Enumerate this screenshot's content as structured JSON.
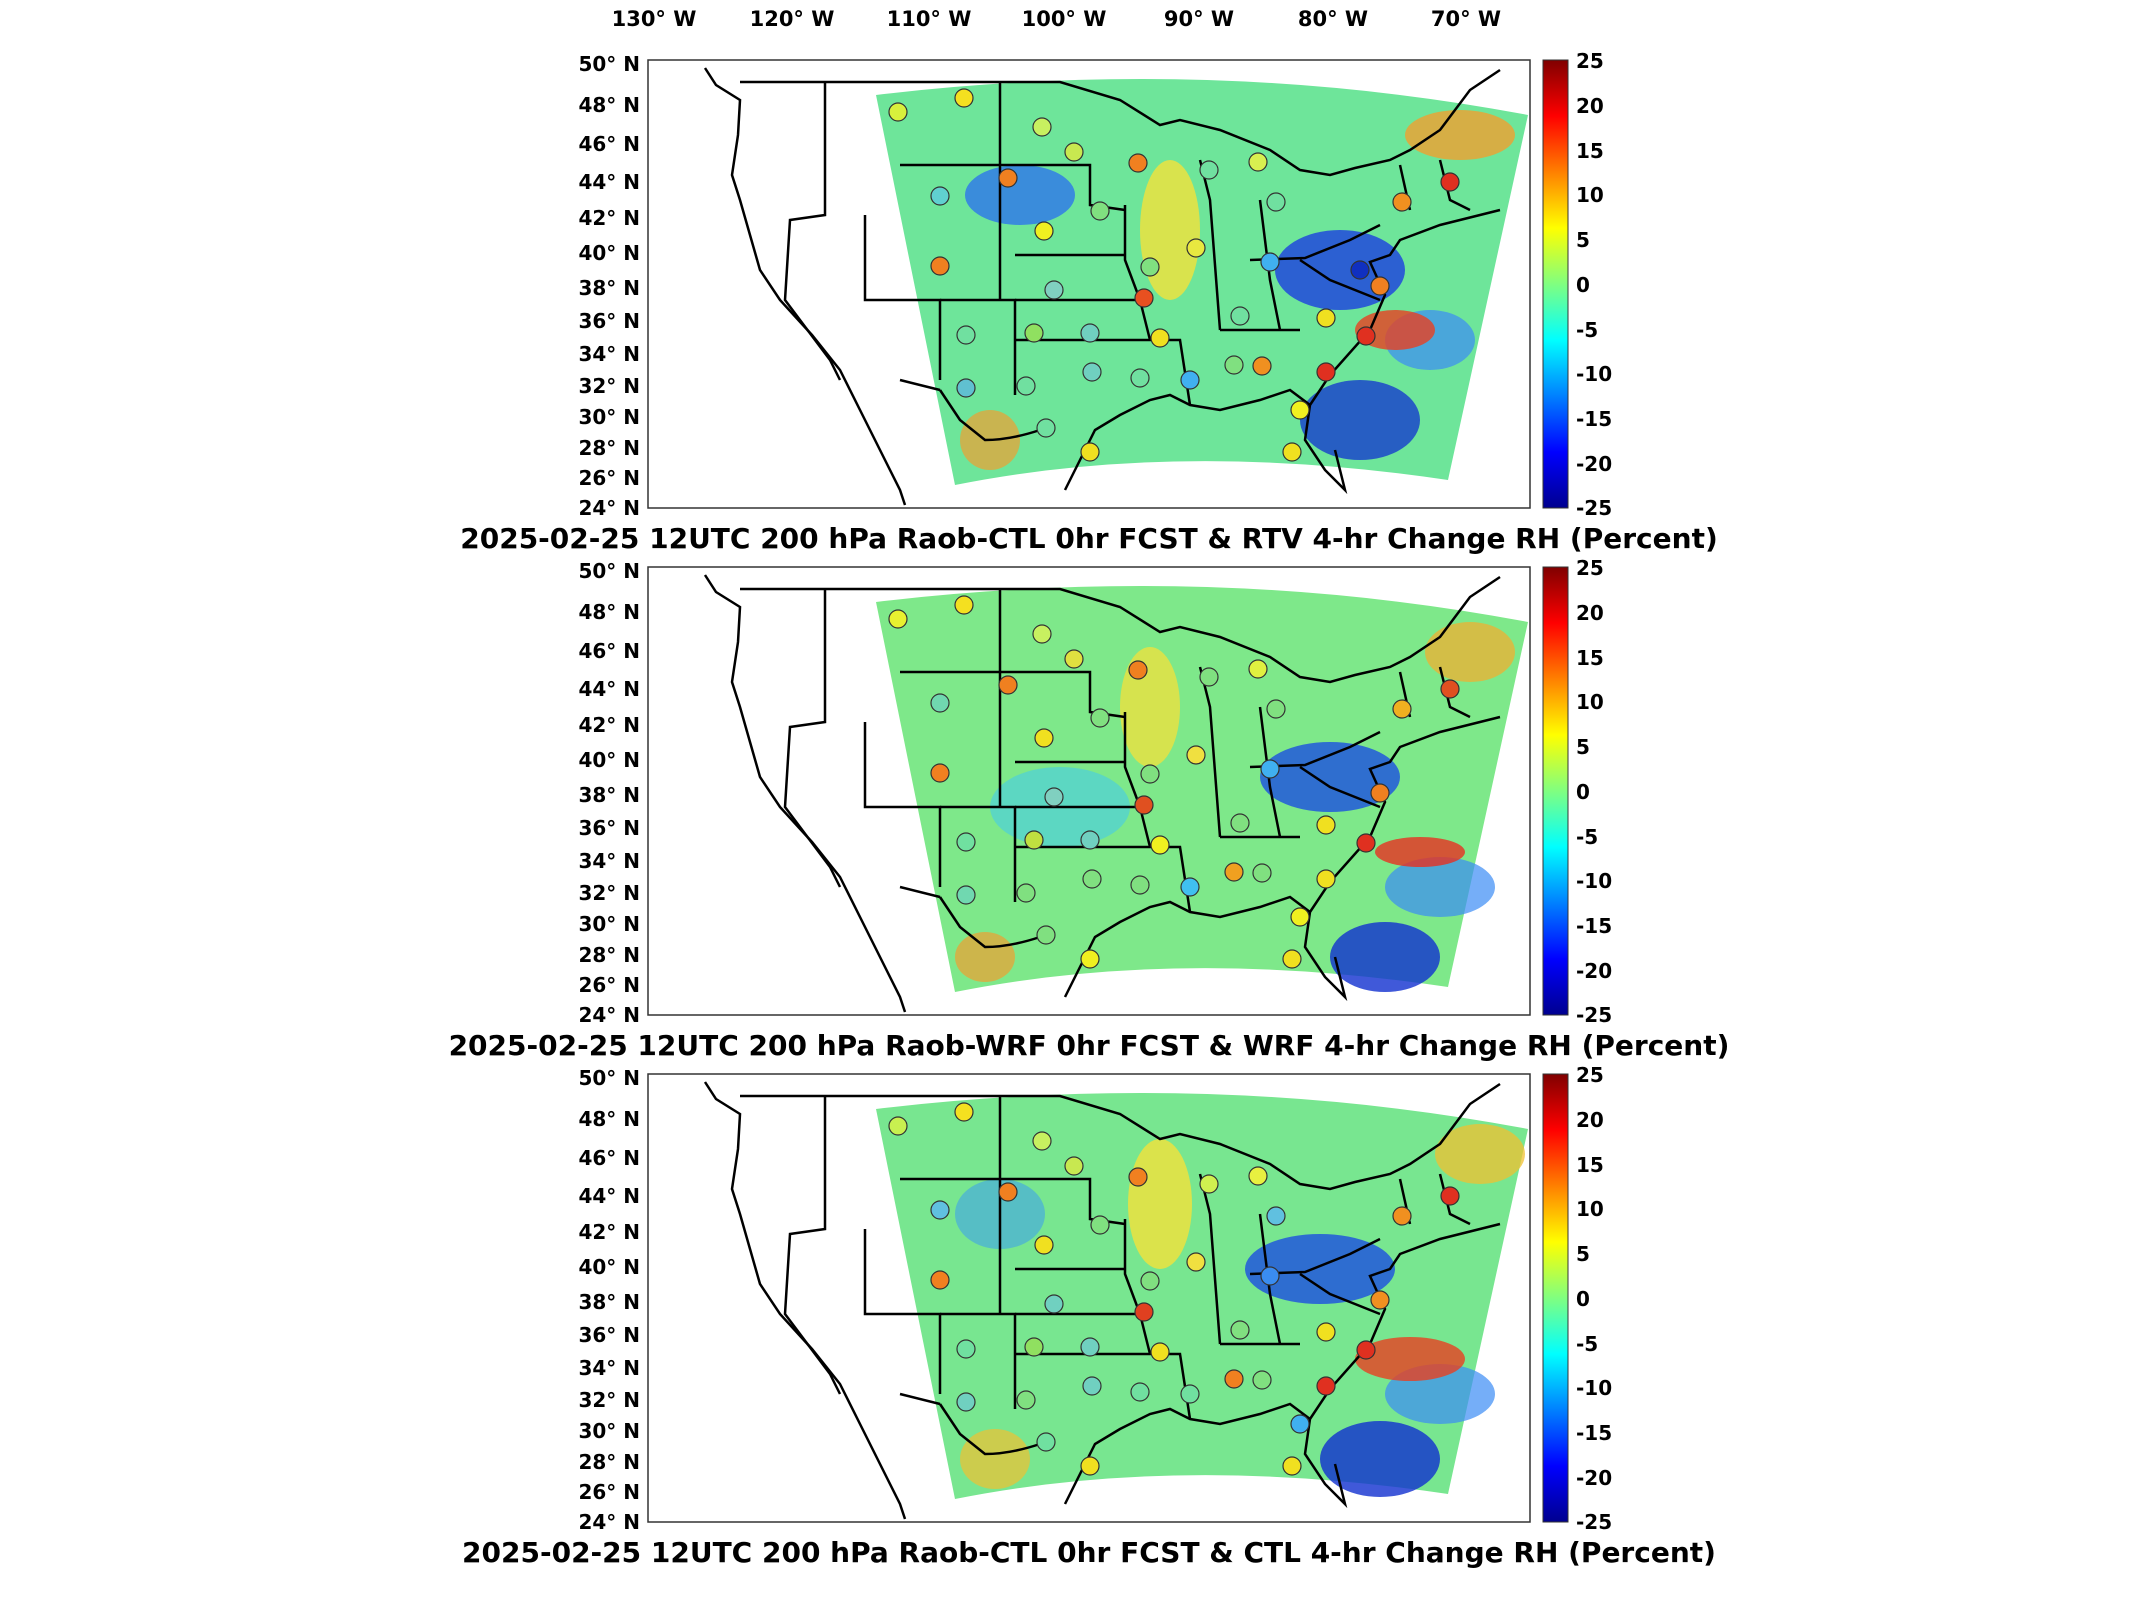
{
  "figure": {
    "lon_labels": [
      "130° W",
      "120° W",
      "110° W",
      "100° W",
      "90° W",
      "80° W",
      "70° W"
    ],
    "lat_labels": [
      "50° N",
      "48° N",
      "46° N",
      "44° N",
      "42° N",
      "40° N",
      "38° N",
      "36° N",
      "34° N",
      "32° N",
      "30° N",
      "28° N",
      "26° N",
      "24° N"
    ]
  },
  "colorbar": {
    "min": -25,
    "max": 25,
    "tick_labels": [
      "25",
      "20",
      "15",
      "10",
      "5",
      "0",
      "-5",
      "-10",
      "-15",
      "-20",
      "-25"
    ],
    "colors": [
      "#00008f",
      "#0000ff",
      "#0080ff",
      "#00ffff",
      "#80ff80",
      "#ffff00",
      "#ff8000",
      "#ff0000",
      "#800000"
    ]
  },
  "panels": [
    {
      "title": "2025-02-25 12UTC 200 hPa Raob-CTL 0hr FCST & RTV 4-hr Change RH (Percent)"
    },
    {
      "title": "2025-02-25 12UTC 200 hPa Raob-WRF 0hr FCST & WRF 4-hr Change RH (Percent)"
    },
    {
      "title": "2025-02-25 12UTC 200 hPa Raob-CTL 0hr FCST & CTL 4-hr Change RH (Percent)"
    }
  ]
}
